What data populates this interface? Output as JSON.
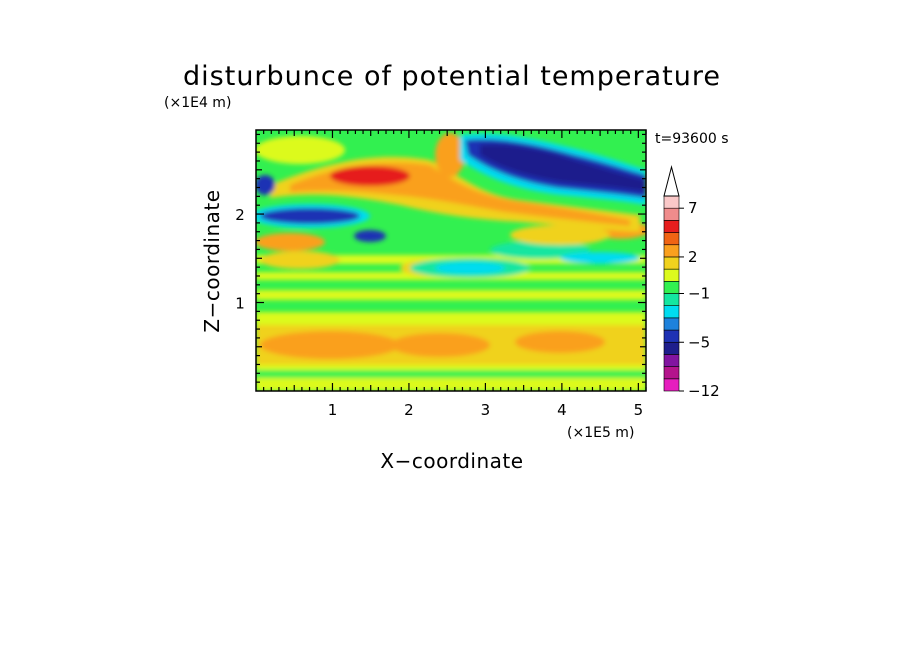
{
  "chart_data": {
    "type": "heatmap",
    "title": "disturbunce of potential temperature",
    "xlabel": "X−coordinate",
    "ylabel": "Z−coordinate",
    "x_unit": "(×1E5 m)",
    "y_unit": "(×1E4 m)",
    "time_label": "t=93600 s",
    "xlim": [
      0,
      5.1
    ],
    "ylim": [
      0,
      2.95
    ],
    "x_ticks": [
      "1",
      "2",
      "3",
      "4",
      "5"
    ],
    "y_ticks": [
      "1",
      "2"
    ],
    "colorbar": {
      "labels": [
        "7",
        "2",
        "−1",
        "−5",
        "−12"
      ],
      "levels": [
        -12,
        -10,
        -8,
        -6,
        -5,
        -4,
        -3,
        -2,
        -1,
        0,
        1,
        2,
        3,
        4,
        5,
        7,
        9
      ],
      "colors": [
        "#e61ebe",
        "#b4148c",
        "#8214a0",
        "#1e1e8c",
        "#1e32b4",
        "#1e82dc",
        "#00dcf0",
        "#14e6a0",
        "#32f050",
        "#dcfa1e",
        "#f0d21e",
        "#faa01e",
        "#f06414",
        "#e61e1e",
        "#f08c8c",
        "#fac8c8"
      ]
    },
    "bands": [
      {
        "z_range": [
          0,
          0.2
        ],
        "value": "green/yellow"
      },
      {
        "z_range": [
          0.2,
          0.75
        ],
        "value": "orange/yellow (+2 to +3)"
      },
      {
        "z_range": [
          0.75,
          1.6
        ],
        "value": "green/yellow (0 to +1)"
      },
      {
        "z_range": [
          1.6,
          2.2
        ],
        "value": "mixed cyan/green/orange"
      },
      {
        "z_range": [
          2.0,
          2.6
        ],
        "value": "red/orange tongue (+5 to +7) from x=0.5 to x=3"
      },
      {
        "z_range": [
          1.9,
          2.1
        ],
        "value": "blue (−4 to −6) near x=0.3 to x=1.5"
      },
      {
        "z_range": [
          2.3,
          2.95
        ],
        "value": "dark blue (−5 to −6) from x=2.7 to x=5.1"
      }
    ]
  }
}
